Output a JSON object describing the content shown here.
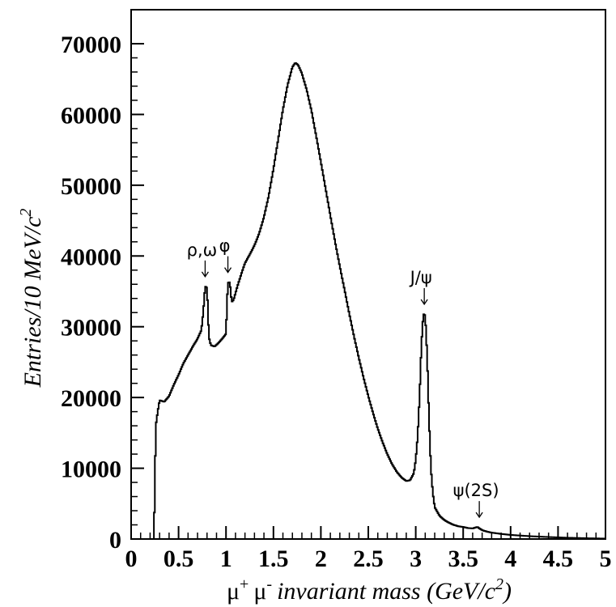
{
  "chart_data": {
    "type": "histogram",
    "bin_width": 0.01,
    "xlabel": {
      "mu": "μ",
      "plus": "+",
      "minus": "-",
      "text": "invariant mass (GeV/c",
      "sup": "2",
      "close": ")"
    },
    "ylabel": {
      "text": "Entries/10 MeV/c",
      "sup": "2"
    },
    "xlim": [
      0,
      5
    ],
    "ylim": [
      0,
      75000
    ],
    "xticks": [
      "0",
      "0.5",
      "1",
      "1.5",
      "2",
      "2.5",
      "3",
      "3.5",
      "4",
      "4.5",
      "5"
    ],
    "yticks": [
      "0",
      "10000",
      "20000",
      "30000",
      "40000",
      "50000",
      "60000",
      "70000"
    ],
    "grid": false,
    "points": [
      [
        0.24,
        0
      ],
      [
        0.25,
        7500
      ],
      [
        0.26,
        16000
      ],
      [
        0.28,
        18000
      ],
      [
        0.3,
        19600
      ],
      [
        0.35,
        19400
      ],
      [
        0.4,
        20200
      ],
      [
        0.45,
        21800
      ],
      [
        0.5,
        23200
      ],
      [
        0.55,
        24800
      ],
      [
        0.6,
        26000
      ],
      [
        0.65,
        27200
      ],
      [
        0.7,
        28300
      ],
      [
        0.74,
        29500
      ],
      [
        0.76,
        32000
      ],
      [
        0.78,
        35700
      ],
      [
        0.8,
        35500
      ],
      [
        0.82,
        28500
      ],
      [
        0.84,
        27400
      ],
      [
        0.88,
        27200
      ],
      [
        0.92,
        27700
      ],
      [
        0.96,
        28300
      ],
      [
        1.0,
        29000
      ],
      [
        1.01,
        33000
      ],
      [
        1.02,
        36200
      ],
      [
        1.04,
        36300
      ],
      [
        1.06,
        33500
      ],
      [
        1.08,
        33800
      ],
      [
        1.12,
        35700
      ],
      [
        1.16,
        37400
      ],
      [
        1.2,
        39000
      ],
      [
        1.25,
        40200
      ],
      [
        1.3,
        41500
      ],
      [
        1.35,
        43200
      ],
      [
        1.4,
        45500
      ],
      [
        1.45,
        48500
      ],
      [
        1.5,
        52300
      ],
      [
        1.55,
        56500
      ],
      [
        1.6,
        60700
      ],
      [
        1.65,
        64200
      ],
      [
        1.7,
        66700
      ],
      [
        1.73,
        67300
      ],
      [
        1.76,
        67000
      ],
      [
        1.8,
        65800
      ],
      [
        1.85,
        63500
      ],
      [
        1.9,
        60600
      ],
      [
        1.95,
        57000
      ],
      [
        2.0,
        53300
      ],
      [
        2.05,
        49500
      ],
      [
        2.1,
        45700
      ],
      [
        2.15,
        42000
      ],
      [
        2.2,
        38500
      ],
      [
        2.25,
        35200
      ],
      [
        2.3,
        31800
      ],
      [
        2.35,
        28600
      ],
      [
        2.4,
        25600
      ],
      [
        2.45,
        22800
      ],
      [
        2.5,
        20200
      ],
      [
        2.55,
        17800
      ],
      [
        2.6,
        15600
      ],
      [
        2.65,
        13700
      ],
      [
        2.7,
        12000
      ],
      [
        2.75,
        10600
      ],
      [
        2.8,
        9500
      ],
      [
        2.85,
        8700
      ],
      [
        2.9,
        8200
      ],
      [
        2.94,
        8300
      ],
      [
        2.98,
        9300
      ],
      [
        3.0,
        11200
      ],
      [
        3.02,
        14500
      ],
      [
        3.04,
        20000
      ],
      [
        3.06,
        27500
      ],
      [
        3.08,
        31800
      ],
      [
        3.1,
        31600
      ],
      [
        3.12,
        26000
      ],
      [
        3.14,
        17000
      ],
      [
        3.16,
        10000
      ],
      [
        3.18,
        6500
      ],
      [
        3.2,
        4500
      ],
      [
        3.25,
        3300
      ],
      [
        3.3,
        2700
      ],
      [
        3.35,
        2300
      ],
      [
        3.4,
        2000
      ],
      [
        3.45,
        1800
      ],
      [
        3.5,
        1700
      ],
      [
        3.55,
        1550
      ],
      [
        3.6,
        1500
      ],
      [
        3.65,
        1700
      ],
      [
        3.7,
        1250
      ],
      [
        3.75,
        1050
      ],
      [
        3.8,
        900
      ],
      [
        3.9,
        720
      ],
      [
        4.0,
        580
      ],
      [
        4.2,
        400
      ],
      [
        4.4,
        280
      ],
      [
        4.6,
        180
      ],
      [
        4.8,
        110
      ],
      [
        5.0,
        60
      ]
    ],
    "annotations": [
      {
        "text": "ρ,ω",
        "x": 0.78,
        "y": 35700
      },
      {
        "text": "φ",
        "x": 1.02,
        "y": 36300
      },
      {
        "text": "J/ψ",
        "x": 3.09,
        "y": 31800
      },
      {
        "text": "ψ(2S)",
        "x": 3.67,
        "y": 1700
      }
    ]
  }
}
